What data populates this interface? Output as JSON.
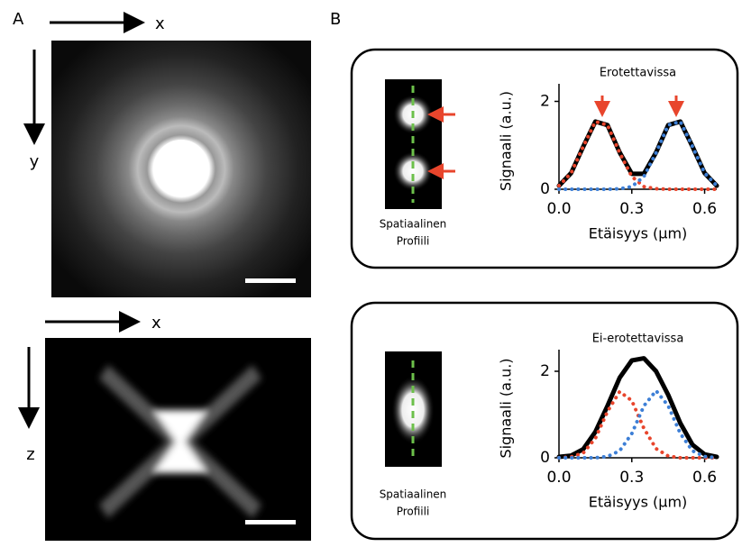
{
  "figure": {
    "panel_labels": [
      "A",
      "B"
    ],
    "top_image_axes": [
      "x",
      "y"
    ],
    "bottom_image_axes": [
      "x",
      "z"
    ],
    "profile_caption": [
      "Spatiaalinen",
      "Profiili"
    ]
  },
  "chart_data": [
    {
      "type": "line",
      "title": "Erotettavissa",
      "xlabel": "Etäisyys (µm)",
      "ylabel": "Signaali (a.u.)",
      "x": [
        0,
        0.05,
        0.1,
        0.15,
        0.2,
        0.25,
        0.3,
        0.35,
        0.4,
        0.45,
        0.5,
        0.55,
        0.6,
        0.65
      ],
      "xlim": [
        0,
        0.65
      ],
      "ylim": [
        0,
        2.4
      ],
      "xticks": [
        {
          "value": 0,
          "label": "0.0"
        },
        {
          "value": 0.3,
          "label": "0.3"
        },
        {
          "value": 0.6,
          "label": "0.6"
        }
      ],
      "yticks": [
        0,
        2
      ],
      "series": [
        {
          "color": "#000000",
          "style": "solid",
          "values": [
            0.08,
            0.37,
            0.97,
            1.54,
            1.46,
            0.84,
            0.35,
            0.35,
            0.84,
            1.46,
            1.54,
            0.97,
            0.37,
            0.08
          ]
        },
        {
          "color": "#e8452c",
          "style": "dotted",
          "values": [
            0.08,
            0.37,
            0.97,
            1.54,
            1.46,
            0.83,
            0.29,
            0.06,
            0.01,
            0,
            0,
            0,
            0,
            0
          ]
        },
        {
          "color": "#3d7fd6",
          "style": "dotted",
          "values": [
            0,
            0,
            0,
            0,
            0,
            0.01,
            0.06,
            0.29,
            0.83,
            1.46,
            1.54,
            0.97,
            0.37,
            0.08
          ]
        }
      ]
    },
    {
      "type": "line",
      "title": "Ei-erotettavissa",
      "xlabel": "Etäisyys (µm)",
      "ylabel": "Signaali (a.u.)",
      "x": [
        0,
        0.05,
        0.1,
        0.15,
        0.2,
        0.25,
        0.3,
        0.35,
        0.4,
        0.45,
        0.5,
        0.55,
        0.6,
        0.65
      ],
      "xlim": [
        0,
        0.65
      ],
      "ylim": [
        0,
        2.5
      ],
      "xticks": [
        {
          "value": 0,
          "label": "0.0"
        },
        {
          "value": 0.3,
          "label": "0.3"
        },
        {
          "value": 0.6,
          "label": "0.6"
        }
      ],
      "yticks": [
        0,
        2
      ],
      "series": [
        {
          "color": "#000000",
          "style": "solid",
          "values": [
            0.02,
            0.05,
            0.2,
            0.6,
            1.2,
            1.85,
            2.25,
            2.3,
            2.0,
            1.45,
            0.8,
            0.3,
            0.08,
            0.02
          ]
        },
        {
          "color": "#e8452c",
          "style": "dotted",
          "values": [
            0,
            0.02,
            0.11,
            0.45,
            1.07,
            1.53,
            1.32,
            0.68,
            0.21,
            0.04,
            0,
            0,
            0,
            0
          ]
        },
        {
          "color": "#3d7fd6",
          "style": "dotted",
          "values": [
            0,
            0,
            0,
            0,
            0.03,
            0.16,
            0.56,
            1.2,
            1.55,
            1.2,
            0.56,
            0.16,
            0.03,
            0
          ]
        }
      ]
    }
  ]
}
